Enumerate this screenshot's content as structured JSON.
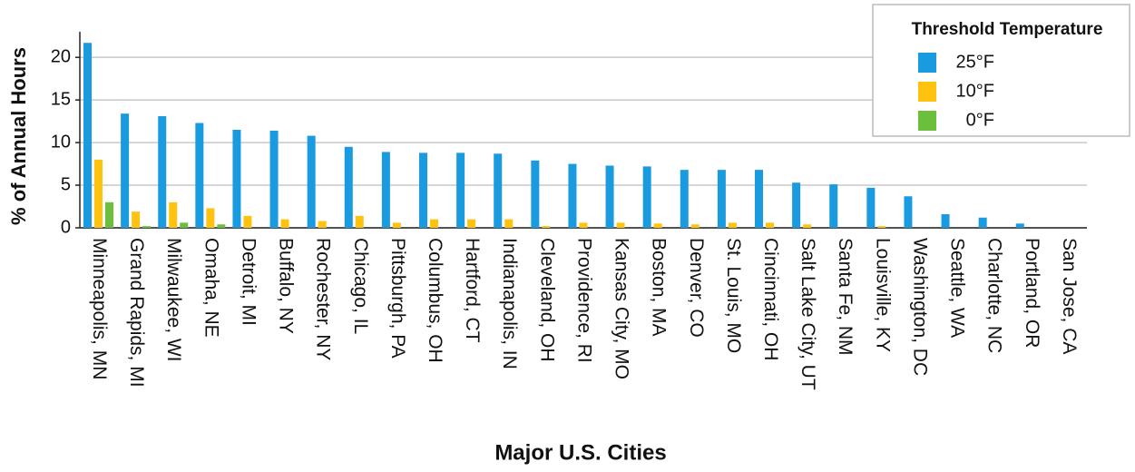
{
  "chart_data": {
    "type": "bar",
    "y_label": "% of Annual Hours",
    "x_label": "Major U.S. Cities",
    "legend_title": "Threshold Temperature",
    "legend": "top-right",
    "grid": true,
    "categories": [
      "Minneapolis, MN",
      "Grand Rapids, MI",
      "Milwaukee, WI",
      "Omaha, NE",
      "Detroit, MI",
      "Buffalo, NY",
      "Rochester, NY",
      "Chicago, IL",
      "Pittsburgh, PA",
      "Columbus, OH",
      "Hartford, CT",
      "Indianapolis, IN",
      "Cleveland, OH",
      "Providence, RI",
      "Kansas City, MO",
      "Boston, MA",
      "Denver, CO",
      "St. Louis, MO",
      "Cincinnati, OH",
      "Salt Lake City, UT",
      "Santa Fe, NM",
      "Louisville, KY",
      "Washington, DC",
      "Seattle, WA",
      "Charlotte, NC",
      "Portland, OR",
      "San Jose, CA"
    ],
    "series": [
      {
        "name": "25°F",
        "color": "#1a9be0",
        "values": [
          21.7,
          13.4,
          13.1,
          12.3,
          11.5,
          11.4,
          10.8,
          9.5,
          8.9,
          8.8,
          8.8,
          8.7,
          7.9,
          7.5,
          7.3,
          7.2,
          6.8,
          6.8,
          6.8,
          5.3,
          5.1,
          4.7,
          3.7,
          1.6,
          1.2,
          0.5,
          0
        ]
      },
      {
        "name": "10°F",
        "color": "#ffc20e",
        "values": [
          8.0,
          1.9,
          3.0,
          2.3,
          1.4,
          1.0,
          0.8,
          1.4,
          0.6,
          1.0,
          1.0,
          1.0,
          0.2,
          0.6,
          0.6,
          0.5,
          0.4,
          0.6,
          0.6,
          0.4,
          0,
          0.2,
          0,
          0,
          0,
          0,
          0
        ]
      },
      {
        "name": "0°F",
        "color": "#6cbf3c",
        "values": [
          3.0,
          0.2,
          0.6,
          0.4,
          0,
          0,
          0,
          0,
          0,
          0,
          0,
          0,
          0,
          0,
          0,
          0,
          0,
          0,
          0,
          0,
          0,
          0,
          0,
          0,
          0,
          0,
          0
        ]
      }
    ],
    "ylim": [
      0,
      23
    ],
    "yticks": [
      0,
      5,
      10,
      15,
      20
    ]
  }
}
